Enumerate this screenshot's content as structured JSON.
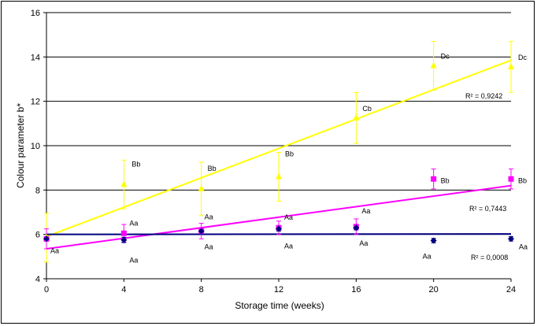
{
  "chart_data": {
    "type": "scatter",
    "xlabel": "Storage time (weeks)",
    "ylabel": "Colour parameter b*",
    "xlim": [
      0,
      24
    ],
    "ylim": [
      4,
      16
    ],
    "xticks": [
      "0",
      "4",
      "8",
      "12",
      "16",
      "20",
      "24"
    ],
    "yticks": [
      "4",
      "6",
      "8",
      "10",
      "12",
      "14",
      "16"
    ],
    "grid": "horizontal",
    "legend": "none",
    "series": [
      {
        "marker": "triangle",
        "color": "#FFFF00",
        "x": [
          0,
          4,
          8,
          12,
          16,
          20,
          24
        ],
        "y": [
          5.85,
          8.25,
          8.05,
          8.6,
          11.25,
          13.6,
          13.55
        ],
        "error": [
          1.1,
          1.1,
          1.2,
          1.1,
          1.15,
          1.1,
          1.15
        ],
        "trendline": {
          "x": [
            0,
            24
          ],
          "y": [
            5.9,
            13.85
          ]
        },
        "r2_label": "R² = 0,9242",
        "labels": [
          "",
          "Bb",
          "Bb",
          "Bb",
          "Cb",
          "Dc",
          "Dc"
        ]
      },
      {
        "marker": "square",
        "color": "#FF00FF",
        "x": [
          0,
          4,
          8,
          12,
          16,
          20,
          24
        ],
        "y": [
          5.8,
          6.05,
          6.15,
          6.3,
          6.35,
          8.5,
          8.5
        ],
        "error": [
          0.45,
          0.4,
          0.35,
          0.3,
          0.35,
          0.45,
          0.45
        ],
        "trendline": {
          "x": [
            0,
            24
          ],
          "y": [
            5.35,
            8.2
          ]
        },
        "r2_label": "R² = 0,7443",
        "labels": [
          "",
          "Aa",
          "Aa",
          "Aa",
          "Aa",
          "Bb",
          "Bb"
        ]
      },
      {
        "marker": "diamond",
        "color": "#000080",
        "x": [
          0,
          4,
          8,
          12,
          16,
          20,
          24
        ],
        "y": [
          5.8,
          5.75,
          6.15,
          6.25,
          6.3,
          5.72,
          5.8
        ],
        "error": [
          0.1,
          0.12,
          0.1,
          0.1,
          0.1,
          0.1,
          0.1
        ],
        "trendline": {
          "x": [
            0,
            24
          ],
          "y": [
            6.0,
            6.02
          ]
        },
        "r2_label": "R² = 0,0008",
        "labels": [
          "Aa",
          "Aa",
          "Aa",
          "Aa",
          "Aa",
          "Aa",
          "Aa"
        ]
      }
    ]
  }
}
